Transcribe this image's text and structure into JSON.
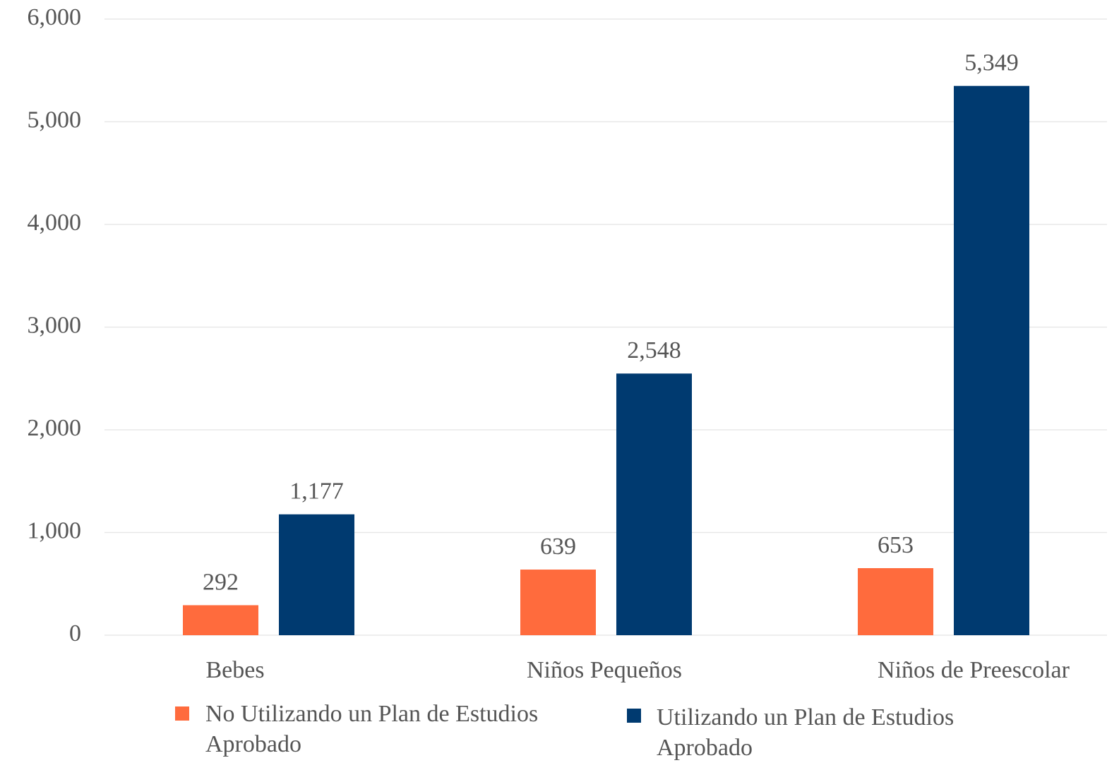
{
  "chart_data": {
    "type": "bar",
    "categories": [
      "Bebes",
      "Niños Pequeños",
      "Niños de Preescolar"
    ],
    "series": [
      {
        "name": "No Utilizando un Plan de Estudios Aprobado",
        "color": "#ff6b3d",
        "values": [
          292,
          639,
          653
        ],
        "value_labels": [
          "292",
          "639",
          "653"
        ]
      },
      {
        "name": "Utilizando un Plan de Estudios Aprobado",
        "color": "#003a70",
        "values": [
          1177,
          2548,
          5349
        ],
        "value_labels": [
          "1,177",
          "2,548",
          "5,349"
        ]
      }
    ],
    "ylim": [
      0,
      6000
    ],
    "yticks": [
      0,
      {
        "value": 1000,
        "label": "1,000"
      },
      {
        "value": 2000,
        "label": "2,000"
      },
      {
        "value": 3000,
        "label": "3,000"
      },
      {
        "value": 4000,
        "label": "4,000"
      },
      {
        "value": 5000,
        "label": "5,000"
      },
      {
        "value": 6000,
        "label": "6,000"
      }
    ],
    "grid": true,
    "legend": "bottom"
  }
}
